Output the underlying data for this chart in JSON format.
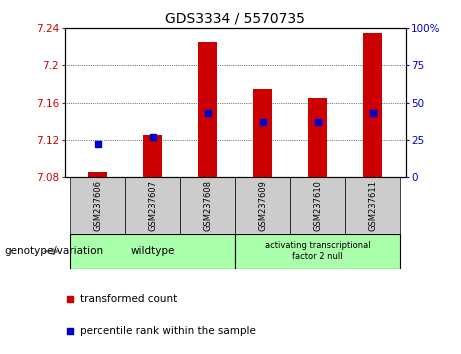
{
  "title": "GDS3334 / 5570735",
  "samples": [
    "GSM237606",
    "GSM237607",
    "GSM237608",
    "GSM237609",
    "GSM237610",
    "GSM237611"
  ],
  "transformed_count": [
    7.085,
    7.125,
    7.225,
    7.175,
    7.165,
    7.235
  ],
  "percentile_rank": [
    22,
    27,
    43,
    37,
    37,
    43
  ],
  "ylim_left": [
    7.08,
    7.24
  ],
  "ylim_right": [
    0,
    100
  ],
  "yticks_left": [
    7.08,
    7.12,
    7.16,
    7.2,
    7.24
  ],
  "ytick_labels_left": [
    "7.08",
    "7.12",
    "7.16",
    "7.2",
    "7.24"
  ],
  "yticks_right": [
    0,
    25,
    50,
    75,
    100
  ],
  "ytick_labels_right": [
    "0",
    "25",
    "50",
    "75",
    "100%"
  ],
  "bar_color": "#cc0000",
  "dot_color": "#0000cc",
  "bar_bottom": 7.08,
  "grid_lines": [
    7.12,
    7.16,
    7.2
  ],
  "background_plot": "#ffffff",
  "background_sample": "#cccccc",
  "background_group": "#aaffaa",
  "wildtype_label": "wildtype",
  "atf_label": "activating transcriptional\nfactor 2 null",
  "genotype_label": "genotype/variation",
  "legend_red_label": "transformed count",
  "legend_blue_label": "percentile rank within the sample",
  "title_fontsize": 10,
  "tick_fontsize": 7.5,
  "sample_fontsize": 6,
  "group_fontsize": 7.5,
  "legend_fontsize": 7.5,
  "bar_width": 0.35
}
